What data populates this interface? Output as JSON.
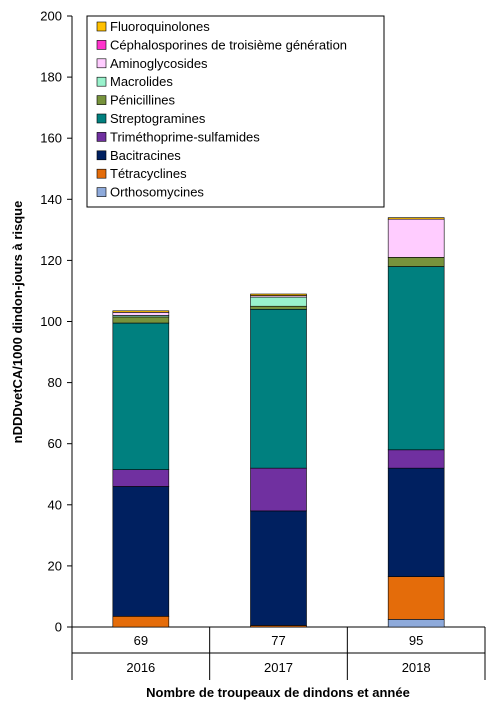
{
  "chart_data": {
    "type": "bar",
    "stacked": true,
    "xlabel": "Nombre de troupeaux de dindons et année",
    "ylabel": "nDDDvetCA/1000 dindon-jours à risque",
    "ylim": [
      0,
      200
    ],
    "yticks": [
      0,
      20,
      40,
      60,
      80,
      100,
      120,
      140,
      160,
      180,
      200
    ],
    "grid": false,
    "legend_position": "top",
    "categories": [
      {
        "count": "69",
        "year": "2016"
      },
      {
        "count": "77",
        "year": "2017"
      },
      {
        "count": "95",
        "year": "2018"
      }
    ],
    "series": [
      {
        "name": "Orthosomycines",
        "color": "#8EAADB",
        "values": [
          0,
          0,
          2.5
        ]
      },
      {
        "name": "Tétracyclines",
        "color": "#E46C0A",
        "values": [
          3.5,
          0.5,
          14
        ]
      },
      {
        "name": "Bacitracines",
        "color": "#002060",
        "values": [
          42.5,
          37.5,
          35.5
        ]
      },
      {
        "name": "Triméthoprime-sulfamides",
        "color": "#7030A0",
        "values": [
          5.5,
          14,
          6
        ]
      },
      {
        "name": "Streptogramines",
        "color": "#00807F",
        "values": [
          48,
          52,
          60
        ]
      },
      {
        "name": "Pénicillines",
        "color": "#77933C",
        "values": [
          2,
          1,
          3
        ]
      },
      {
        "name": "Macrolides",
        "color": "#99F2CC",
        "values": [
          0.5,
          3,
          0
        ]
      },
      {
        "name": "Aminoglycosides",
        "color": "#FFCCFF",
        "values": [
          1,
          0.5,
          12.5
        ]
      },
      {
        "name": "Céphalosporines de troisième génération",
        "color": "#FF33CC",
        "values": [
          0,
          0,
          0
        ]
      },
      {
        "name": "Fluoroquinolones",
        "color": "#FFC000",
        "values": [
          0.5,
          0.5,
          0.5
        ]
      }
    ]
  }
}
